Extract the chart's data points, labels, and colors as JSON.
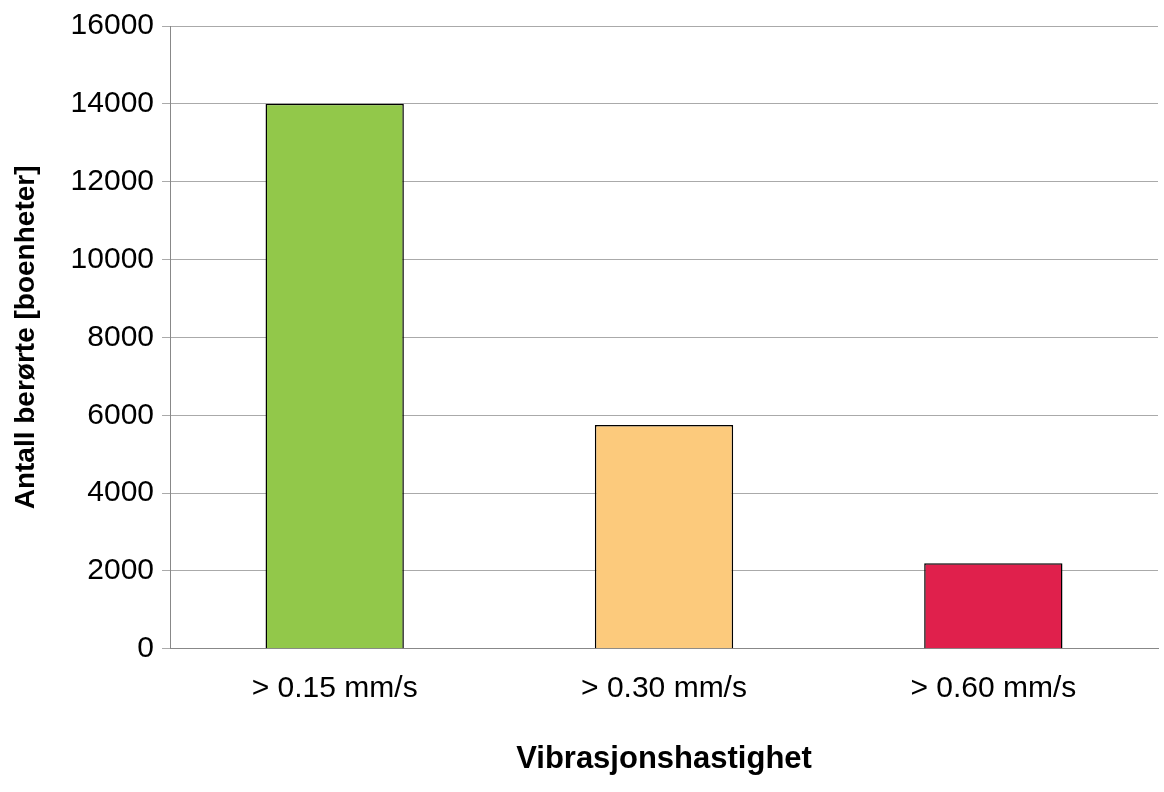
{
  "chart_data": {
    "type": "bar",
    "xlabel": "Vibrasjonshastighet",
    "ylabel": "Antall berørte [boenheter]",
    "categories": [
      "> 0.15 mm/s",
      "> 0.30 mm/s",
      "> 0.60 mm/s"
    ],
    "values": [
      14000,
      5750,
      2200
    ],
    "colors": [
      "#92c84a",
      "#fcca7c",
      "#e0204c"
    ],
    "ylim": [
      0,
      16000
    ],
    "yticks": [
      0,
      2000,
      4000,
      6000,
      8000,
      10000,
      12000,
      14000,
      16000
    ],
    "grid": "y",
    "legend": false
  }
}
